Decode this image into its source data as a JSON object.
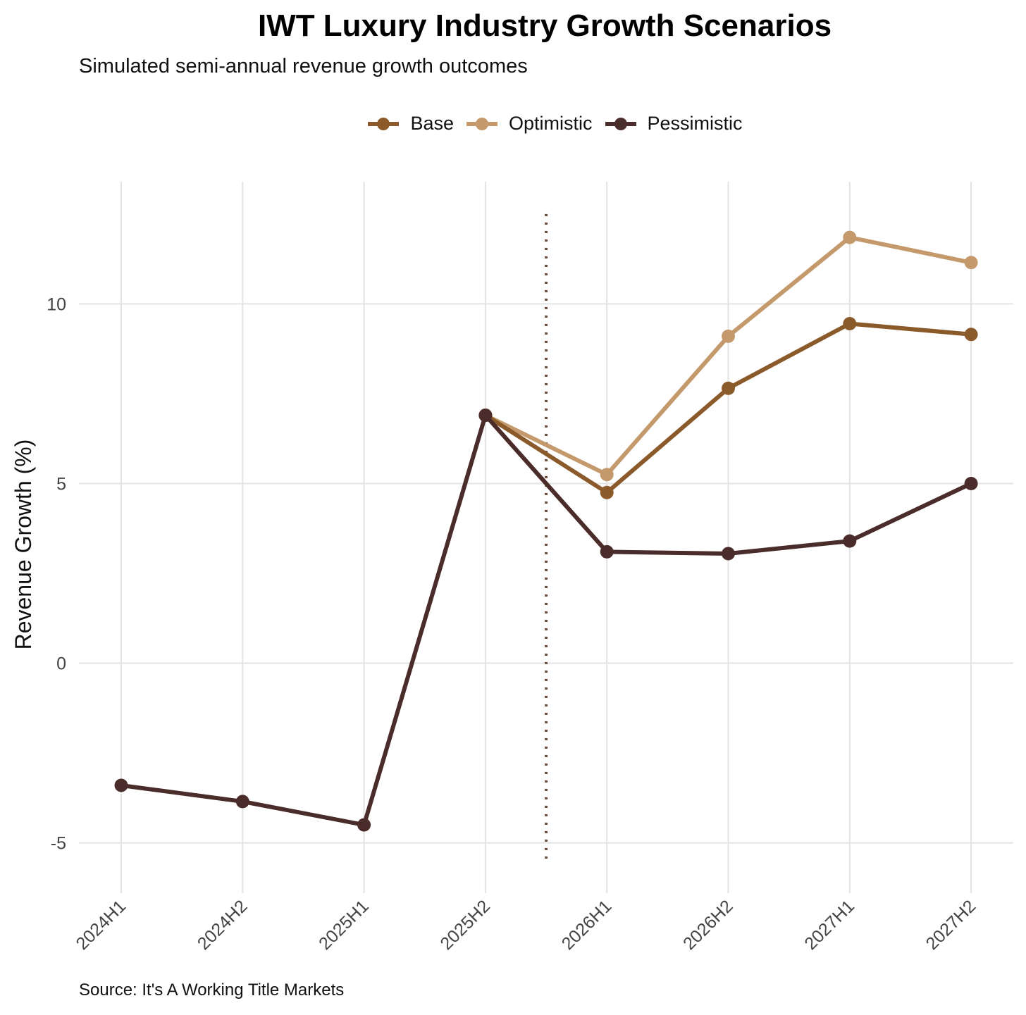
{
  "chart_data": {
    "type": "line",
    "title": "IWT Luxury Industry Growth Scenarios",
    "subtitle": "Simulated semi-annual revenue growth outcomes",
    "ylabel": "Revenue Growth (%)",
    "xlabel": "",
    "caption": "Source: It's A Working Title Markets",
    "categories": [
      "2024H1",
      "2024H2",
      "2025H1",
      "2025H2",
      "2026H1",
      "2026H2",
      "2027H1",
      "2027H2"
    ],
    "ylim": [
      -6.4,
      13.4
    ],
    "yticks": [
      -5,
      0,
      5,
      10
    ],
    "ytick_labels": [
      "-5",
      "0",
      "5",
      "10"
    ],
    "grid": true,
    "legend_position": "top",
    "forecast_divider_between": [
      "2025H2",
      "2026H1"
    ],
    "divider_ylim": [
      -5.5,
      12.5
    ],
    "divider_color": "#6b4a33",
    "series": [
      {
        "name": "Base",
        "color": "#8b5a2b",
        "x": [
          "2025H2",
          "2026H1",
          "2026H2",
          "2027H1",
          "2027H2"
        ],
        "values": [
          6.9,
          4.75,
          7.65,
          9.45,
          9.15
        ]
      },
      {
        "name": "Optimistic",
        "color": "#c49a6c",
        "x": [
          "2025H2",
          "2026H1",
          "2026H2",
          "2027H1",
          "2027H2"
        ],
        "values": [
          6.9,
          5.25,
          9.1,
          11.85,
          11.15
        ]
      },
      {
        "name": "Pessimistic",
        "color": "#4a2c2a",
        "x": [
          "2024H1",
          "2024H2",
          "2025H1",
          "2025H2",
          "2026H1",
          "2026H2",
          "2027H1",
          "2027H2"
        ],
        "values": [
          -3.4,
          -3.85,
          -4.5,
          6.9,
          3.1,
          3.05,
          3.4,
          5.0
        ]
      }
    ]
  }
}
